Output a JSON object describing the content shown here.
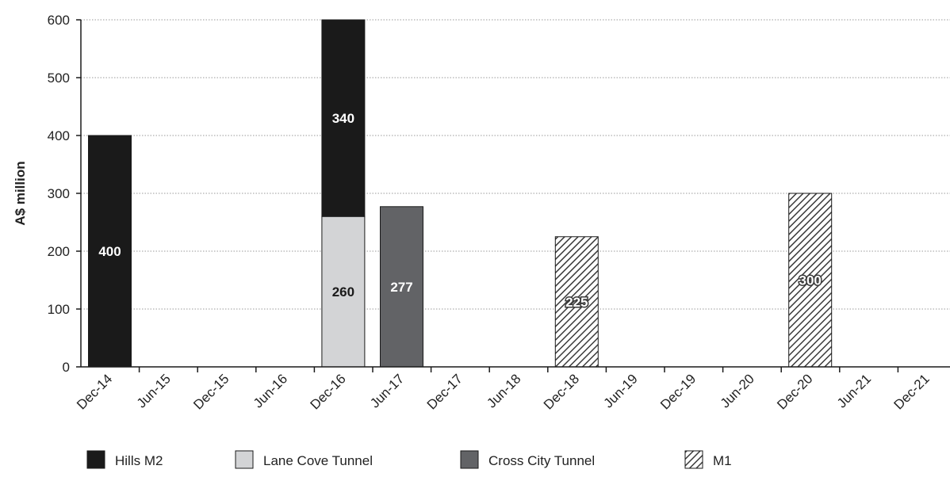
{
  "chart_data": {
    "type": "bar",
    "stacked": true,
    "ylabel": "A$ million",
    "xlabel": "",
    "ylim": [
      0,
      600
    ],
    "yticks": [
      0,
      100,
      200,
      300,
      400,
      500,
      600
    ],
    "grid": "horizontal dotted",
    "legend_position": "bottom",
    "categories": [
      "Dec-14",
      "Jun-15",
      "Dec-15",
      "Jun-16",
      "Dec-16",
      "Jun-17",
      "Dec-17",
      "Jun-18",
      "Dec-18",
      "Jun-19",
      "Dec-19",
      "Jun-20",
      "Dec-20",
      "Jun-21",
      "Dec-21"
    ],
    "series": [
      {
        "name": "Hills M2",
        "color": "#1a1a1a",
        "fill": "solid",
        "label_color": "#ffffff",
        "values": [
          400,
          0,
          0,
          0,
          340,
          0,
          0,
          0,
          0,
          0,
          0,
          0,
          0,
          0,
          0
        ]
      },
      {
        "name": "Lane Cove Tunnel",
        "color": "#d3d4d6",
        "fill": "solid",
        "label_color": "#1a1a1a",
        "values": [
          0,
          0,
          0,
          0,
          260,
          0,
          0,
          0,
          0,
          0,
          0,
          0,
          0,
          0,
          0
        ]
      },
      {
        "name": "Cross City Tunnel",
        "color": "#626366",
        "fill": "solid",
        "label_color": "#ffffff",
        "values": [
          0,
          0,
          0,
          0,
          0,
          277,
          0,
          0,
          0,
          0,
          0,
          0,
          0,
          0,
          0
        ]
      },
      {
        "name": "M1",
        "color": "#3a3a3a",
        "fill": "diagonal-hatch",
        "label_color": "#ffffff",
        "values": [
          0,
          0,
          0,
          0,
          0,
          0,
          0,
          0,
          225,
          0,
          0,
          0,
          300,
          0,
          0
        ]
      }
    ],
    "stack_order_bottom_to_top": [
      "Lane Cove Tunnel",
      "Hills M2",
      "Cross City Tunnel",
      "M1"
    ]
  }
}
